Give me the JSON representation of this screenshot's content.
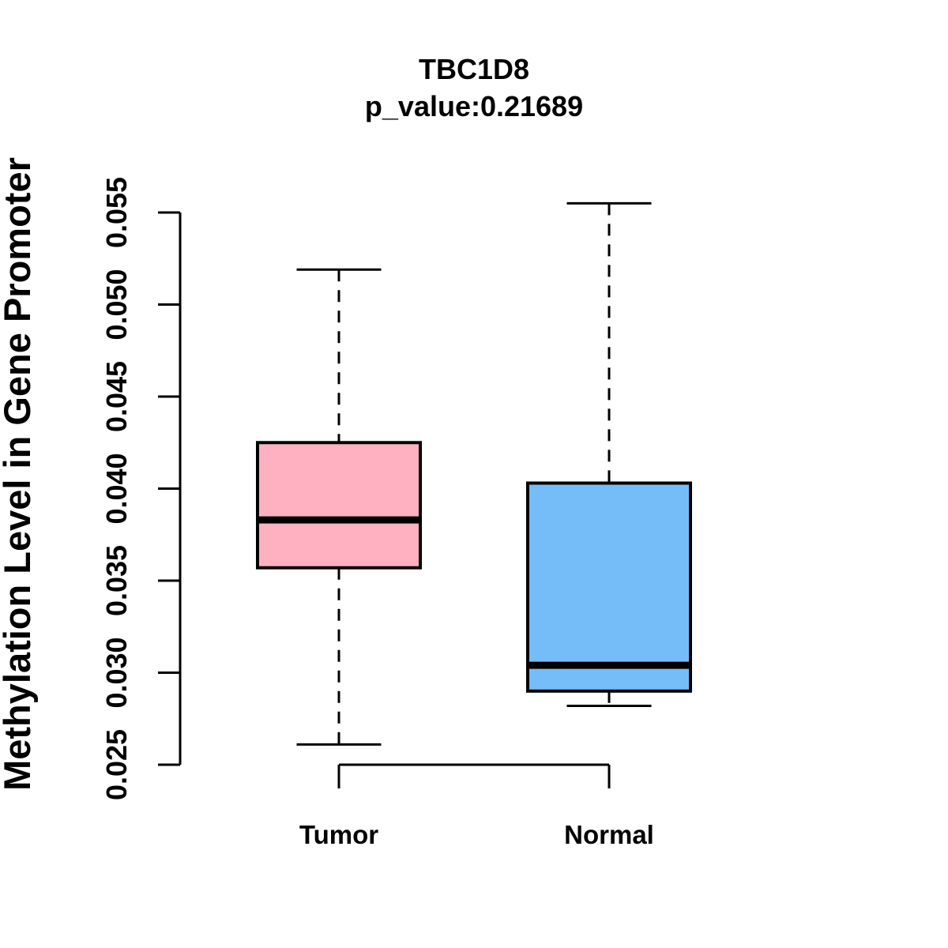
{
  "chart_data": {
    "type": "boxplot",
    "title": "TBC1D8",
    "subtitle": "p_value:0.21689",
    "ylabel": "Methylation Level in Gene Promoter",
    "xlabel": "",
    "ylim": [
      0.025,
      0.055
    ],
    "ytick_labels": [
      "0.025",
      "0.030",
      "0.035",
      "0.040",
      "0.045",
      "0.050",
      "0.055"
    ],
    "grid": "off",
    "legend": "none",
    "groups": [
      {
        "label": "Tumor",
        "color": "#ffb1c1",
        "whisker_low": 0.0261,
        "q1": 0.0357,
        "median": 0.0383,
        "q3": 0.0425,
        "whisker_high": 0.0519
      },
      {
        "label": "Normal",
        "color": "#74bdf8",
        "whisker_low": 0.0282,
        "q1": 0.029,
        "median": 0.0304,
        "q3": 0.0403,
        "whisker_high": 0.0555
      }
    ],
    "border_color": "#000000",
    "median_color": "#000000"
  }
}
